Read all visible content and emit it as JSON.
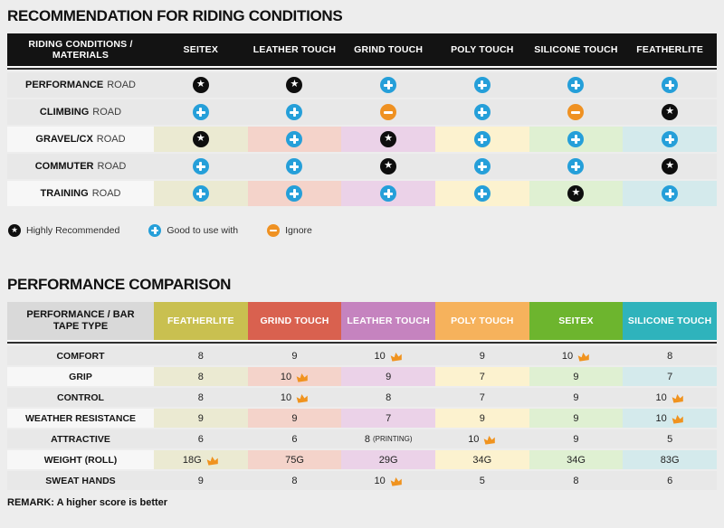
{
  "chart_data": [
    {
      "type": "table",
      "title": "RECOMMENDATION FOR RIDING CONDITIONS",
      "corner_label": "RIDING CONDITIONS / MATERIALS",
      "columns": [
        "SEITEX",
        "LEATHER TOUCH",
        "GRIND TOUCH",
        "POLY TOUCH",
        "SILICONE TOUCH",
        "FEATHERLITE"
      ],
      "rows": [
        {
          "name": "PERFORMANCE",
          "suffix": "ROAD",
          "tinted": false,
          "cells": [
            "star",
            "star",
            "plus",
            "plus",
            "plus",
            "plus"
          ]
        },
        {
          "name": "CLIMBING",
          "suffix": "ROAD",
          "tinted": false,
          "cells": [
            "plus",
            "plus",
            "minus",
            "plus",
            "minus",
            "star"
          ]
        },
        {
          "name": "GRAVEL/CX",
          "suffix": "ROAD",
          "tinted": true,
          "cells": [
            "star",
            "plus",
            "star",
            "plus",
            "plus",
            "plus"
          ]
        },
        {
          "name": "COMMUTER",
          "suffix": "ROAD",
          "tinted": false,
          "cells": [
            "plus",
            "plus",
            "star",
            "plus",
            "plus",
            "star"
          ]
        },
        {
          "name": "TRAINING",
          "suffix": "ROAD",
          "tinted": true,
          "cells": [
            "plus",
            "plus",
            "plus",
            "plus",
            "star",
            "plus"
          ]
        }
      ],
      "legend": [
        {
          "icon": "star",
          "label": "Highly Recommended"
        },
        {
          "icon": "plus",
          "label": "Good to use with"
        },
        {
          "icon": "minus",
          "label": "Ignore"
        }
      ],
      "icon_meanings": {
        "star": "Highly Recommended",
        "plus": "Good to use with",
        "minus": "Ignore"
      }
    },
    {
      "type": "table",
      "title": "PERFORMANCE COMPARISON",
      "corner_label": "PERFORMANCE / BAR TAPE TYPE",
      "columns": [
        {
          "label": "FEATHERLITE",
          "color": "#c9c050"
        },
        {
          "label": "GRIND TOUCH",
          "color": "#d9614f"
        },
        {
          "label": "LEATHER TOUCH",
          "color": "#c583bf"
        },
        {
          "label": "POLY TOUCH",
          "color": "#f6b25c"
        },
        {
          "label": "SEITEX",
          "color": "#6db52e"
        },
        {
          "label": "SILICONE TOUCH",
          "color": "#2fb3bc"
        }
      ],
      "rows": [
        {
          "label": "COMFORT",
          "tinted": false,
          "cells": [
            {
              "value": "8"
            },
            {
              "value": "9"
            },
            {
              "value": "10",
              "crown": true
            },
            {
              "value": "9"
            },
            {
              "value": "10",
              "crown": true
            },
            {
              "value": "8"
            }
          ]
        },
        {
          "label": "GRIP",
          "tinted": true,
          "cells": [
            {
              "value": "8"
            },
            {
              "value": "10",
              "crown": true
            },
            {
              "value": "9"
            },
            {
              "value": "7"
            },
            {
              "value": "9"
            },
            {
              "value": "7"
            }
          ]
        },
        {
          "label": "CONTROL",
          "tinted": false,
          "cells": [
            {
              "value": "8"
            },
            {
              "value": "10",
              "crown": true
            },
            {
              "value": "8"
            },
            {
              "value": "7"
            },
            {
              "value": "9"
            },
            {
              "value": "10",
              "crown": true
            }
          ]
        },
        {
          "label": "WEATHER RESISTANCE",
          "tinted": true,
          "cells": [
            {
              "value": "9"
            },
            {
              "value": "9"
            },
            {
              "value": "7"
            },
            {
              "value": "9"
            },
            {
              "value": "9"
            },
            {
              "value": "10",
              "crown": true
            }
          ]
        },
        {
          "label": "ATTRACTIVE",
          "tinted": false,
          "cells": [
            {
              "value": "6"
            },
            {
              "value": "6"
            },
            {
              "value": "8",
              "note": "(PRINTING)"
            },
            {
              "value": "10",
              "crown": true
            },
            {
              "value": "9"
            },
            {
              "value": "5"
            }
          ]
        },
        {
          "label": "WEIGHT (ROLL)",
          "tinted": true,
          "cells": [
            {
              "value": "18G",
              "crown": true
            },
            {
              "value": "75G"
            },
            {
              "value": "29G"
            },
            {
              "value": "34G"
            },
            {
              "value": "34G"
            },
            {
              "value": "83G"
            }
          ]
        },
        {
          "label": "SWEAT HANDS",
          "tinted": false,
          "cells": [
            {
              "value": "9"
            },
            {
              "value": "8"
            },
            {
              "value": "10",
              "crown": true
            },
            {
              "value": "5"
            },
            {
              "value": "8"
            },
            {
              "value": "6"
            }
          ]
        }
      ],
      "remark": "REMARK: A higher score is better",
      "crown_meaning": "best score in row"
    }
  ],
  "colors": {
    "page_bg": "#ededed",
    "t1_header_bg": "#131313",
    "t2_corner_bg": "#d9d9d9",
    "row_gray": "#e8e8e8",
    "row_light_label": "#f7f7f7",
    "column_tints": [
      "#ebead2",
      "#f4d3ca",
      "#ebd2e8",
      "#fcf2cf",
      "#dff0d2",
      "#d4eaec"
    ],
    "star_bg": "#0e0e0e",
    "plus_bg": "#259fd9",
    "minus_bg": "#ef9122",
    "crown": "#f0931f"
  }
}
